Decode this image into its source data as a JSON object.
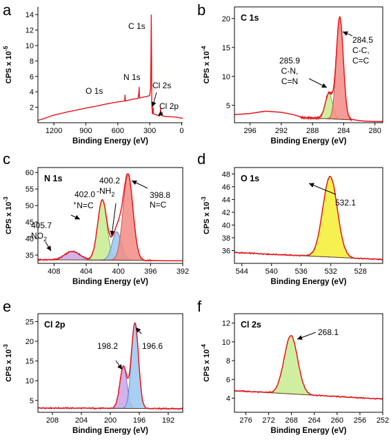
{
  "chart_data": [
    {
      "id": "a",
      "panel_letter": "a",
      "type": "line",
      "title": "",
      "xlabel": "Binding Energy (eV)",
      "ylabel": {
        "main": "CPS x 10",
        "exp": "-5"
      },
      "xlim": [
        1350,
        -10
      ],
      "ylim": [
        0,
        15
      ],
      "xticks": [
        1200,
        900,
        600,
        300,
        0
      ],
      "yticks": [
        2,
        4,
        6,
        8,
        10,
        12,
        14
      ],
      "series": [
        {
          "color": "#e8141a",
          "fill": "none",
          "x": [
            1350,
            1300,
            1250,
            1200,
            1150,
            1100,
            1050,
            1000,
            950,
            900,
            850,
            800,
            750,
            700,
            650,
            600,
            550,
            535,
            532,
            529,
            500,
            450,
            410,
            402,
            399,
            396,
            385,
            330,
            300,
            292,
            288,
            285,
            283,
            281,
            275,
            270,
            268,
            266,
            260,
            210,
            200,
            198,
            195,
            180,
            150,
            100,
            50,
            0,
            -10
          ],
          "y": [
            0.3,
            0.5,
            0.75,
            1.0,
            1.15,
            1.3,
            1.45,
            1.6,
            1.75,
            1.9,
            2.05,
            2.15,
            2.3,
            2.45,
            2.55,
            2.7,
            2.8,
            2.85,
            3.6,
            2.8,
            2.9,
            3.05,
            3.15,
            3.9,
            4.6,
            3.2,
            3.25,
            3.4,
            3.5,
            4.5,
            9.5,
            14.0,
            9.0,
            2.5,
            1.1,
            1.3,
            2.0,
            1.2,
            1.15,
            0.9,
            1.2,
            1.9,
            1.0,
            0.9,
            0.8,
            0.75,
            0.7,
            0.6,
            0.6
          ]
        }
      ],
      "annotations": [
        {
          "text": "C 1s"
        },
        {
          "text": "N 1s"
        },
        {
          "text": "O 1s"
        },
        {
          "text": "Cl 2s"
        },
        {
          "text": "Cl 2p"
        }
      ]
    },
    {
      "id": "b",
      "panel_letter": "b",
      "type": "line",
      "title": "C 1s",
      "xlabel": "Binding Energy (eV)",
      "ylabel": {
        "main": "CPS x 10",
        "exp": "-4"
      },
      "xlim": [
        298,
        279
      ],
      "ylim": [
        2,
        22
      ],
      "xticks": [
        296,
        292,
        288,
        284,
        280
      ],
      "yticks": [
        5,
        10,
        15,
        20
      ],
      "baseline": [
        [
          289.5,
          2.9
        ],
        [
          283.0,
          2.5
        ]
      ],
      "components": [
        {
          "center": 285.9,
          "height": 4.4,
          "fwhm": 1.1,
          "fill": "#c8eb8f",
          "stroke": "#7aa83a"
        },
        {
          "center": 284.5,
          "height": 17.6,
          "fwhm": 1.05,
          "fill": "#f48b84",
          "stroke": "#c0504d"
        }
      ],
      "envelope_color": "#e8141a",
      "data_x": [
        298,
        296,
        294,
        292,
        290.5,
        289.5,
        289
      ],
      "data_y": [
        3.4,
        3.6,
        4.0,
        3.8,
        3.4,
        3.0,
        2.9
      ],
      "tail_x": [
        283.0,
        282.2,
        281.5,
        280,
        279
      ],
      "tail_y": [
        2.6,
        2.4,
        2.3,
        2.2,
        2.2
      ],
      "annotations": [
        {
          "lines": [
            "284.5",
            "C-C,",
            "C=C"
          ]
        },
        {
          "lines": [
            "285.9",
            "C-N,",
            "C=N"
          ]
        }
      ]
    },
    {
      "id": "c",
      "panel_letter": "c",
      "type": "line",
      "title": "N 1s",
      "xlabel": "Binding Energy (eV)",
      "ylabel": {
        "main": "CPS x 10",
        "exp": "-3"
      },
      "xlim": [
        410,
        392
      ],
      "ylim": [
        32.5,
        61.5
      ],
      "xticks": [
        408,
        404,
        400,
        396,
        392
      ],
      "yticks": [
        35,
        40,
        45,
        50,
        55,
        60
      ],
      "baseline": [
        [
          410,
          33.6
        ],
        [
          396,
          33.4
        ]
      ],
      "components": [
        {
          "center": 405.7,
          "height": 2.6,
          "fwhm": 2.2,
          "fill": "#c9a5e6",
          "stroke": "#8a63b8"
        },
        {
          "center": 402.0,
          "height": 18.2,
          "fwhm": 1.35,
          "fill": "#c8eb8f",
          "stroke": "#7aa83a"
        },
        {
          "center": 400.2,
          "height": 8.6,
          "fwhm": 1.35,
          "fill": "#9bc7f0",
          "stroke": "#4f81bd"
        },
        {
          "center": 398.8,
          "height": 25.8,
          "fwhm": 1.45,
          "fill": "#f48b84",
          "stroke": "#c0504d"
        }
      ],
      "envelope_color": "#e8141a",
      "data_x": [],
      "data_y": [],
      "tail_x": [
        396,
        394,
        392
      ],
      "tail_y": [
        33.4,
        33.3,
        33.3
      ],
      "annotations": [
        {
          "lines": [
            "398.8",
            "N=C"
          ]
        },
        {
          "lines": [
            "400.2",
            "-NH",
            "2"
          ]
        },
        {
          "lines": [
            "402.0",
            "+",
            "N=C"
          ]
        },
        {
          "lines": [
            "405.7",
            "-NO",
            "2"
          ]
        }
      ]
    },
    {
      "id": "d",
      "panel_letter": "d",
      "type": "line",
      "title": "O 1s",
      "xlabel": "Binding Energy (eV)",
      "ylabel": {
        "main": "CPS x 10",
        "exp": "-3"
      },
      "xlim": [
        545,
        525
      ],
      "ylim": [
        34,
        49
      ],
      "xticks": [
        544,
        540,
        536,
        532,
        528
      ],
      "yticks": [
        36,
        38,
        40,
        42,
        44,
        46,
        48
      ],
      "baseline": [
        [
          545,
          35.7
        ],
        [
          525,
          34.6
        ]
      ],
      "components": [
        {
          "center": 532.1,
          "height": 12.6,
          "fwhm": 2.3,
          "fill": "#f5ef33",
          "stroke": "#9a8f20"
        }
      ],
      "envelope_color": "#e8141a",
      "data_x": [],
      "data_y": [],
      "tail_x": [],
      "tail_y": [],
      "annotations": [
        {
          "lines": [
            "532.1"
          ]
        }
      ]
    },
    {
      "id": "e",
      "panel_letter": "e",
      "type": "line",
      "title": "Cl 2p",
      "xlabel": "Binding Energy (eV)",
      "ylabel": {
        "main": "CPS x 10",
        "exp": "-3"
      },
      "xlim": [
        210,
        190
      ],
      "ylim": [
        2,
        27
      ],
      "xticks": [
        208,
        204,
        200,
        196,
        192
      ],
      "yticks": [
        5,
        10,
        15,
        20,
        25
      ],
      "baseline": [
        [
          210,
          3.1
        ],
        [
          190,
          2.9
        ]
      ],
      "components": [
        {
          "center": 198.2,
          "height": 10.7,
          "fwhm": 1.15,
          "fill": "#c9a5e6",
          "stroke": "#8a63b8"
        },
        {
          "center": 196.6,
          "height": 21.8,
          "fwhm": 1.15,
          "fill": "#9bc7f0",
          "stroke": "#4f81bd"
        }
      ],
      "envelope_color": "#e8141a",
      "data_x": [],
      "data_y": [],
      "tail_x": [],
      "tail_y": [],
      "annotations": [
        {
          "lines": [
            "198.2"
          ]
        },
        {
          "lines": [
            "196.6"
          ]
        }
      ]
    },
    {
      "id": "f",
      "panel_letter": "f",
      "type": "line",
      "title": "Cl 2s",
      "xlabel": "Binding Energy (eV)",
      "ylabel": {
        "main": "CPS x 10",
        "exp": "-4"
      },
      "xlim": [
        278,
        252
      ],
      "ylim": [
        2.5,
        13
      ],
      "xticks": [
        276,
        272,
        268,
        264,
        260,
        256,
        252
      ],
      "yticks": [
        4,
        6,
        8,
        10,
        12
      ],
      "baseline": [
        [
          278,
          4.8
        ],
        [
          252,
          3.9
        ]
      ],
      "components": [
        {
          "center": 268.1,
          "height": 6.2,
          "fwhm": 2.8,
          "fill": "#c8eb8f",
          "stroke": "#7aa83a"
        }
      ],
      "envelope_color": "#e8141a",
      "data_x": [],
      "data_y": [],
      "tail_x": [],
      "tail_y": [],
      "annotations": [
        {
          "lines": [
            "268.1"
          ]
        }
      ]
    }
  ]
}
